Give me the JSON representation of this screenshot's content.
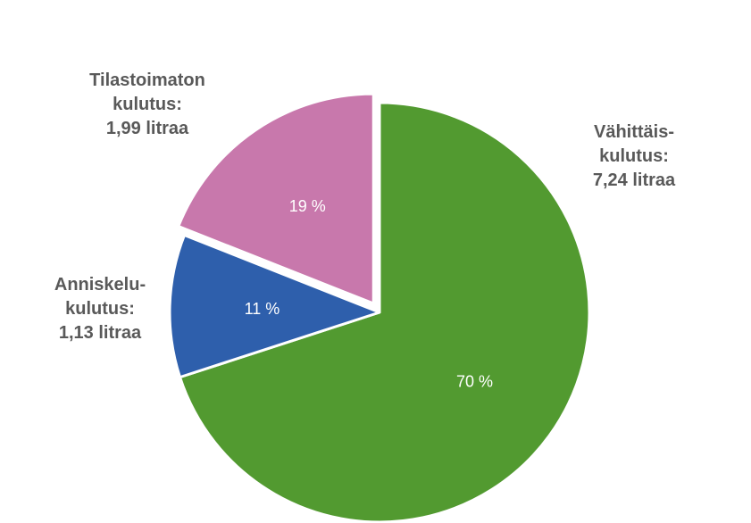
{
  "chart_data": {
    "type": "pie",
    "title": "",
    "slices": [
      {
        "value": 70,
        "percent_label": "70 %",
        "label_lines": [
          "Vähittäis-",
          "kulutus:",
          "7,24 litraa"
        ],
        "color": "#529A30"
      },
      {
        "value": 11,
        "percent_label": "11 %",
        "label_lines": [
          "Anniskelu-",
          "kulutus:",
          "1,13 litraa"
        ],
        "color": "#2E5FAC"
      },
      {
        "value": 19,
        "percent_label": "19 %",
        "label_lines": [
          "Tilastoimaton",
          "kulutus:",
          "1,99 litraa"
        ],
        "color": "#C878AC"
      }
    ],
    "start_angle_deg": 0,
    "direction": "clockwise",
    "exploded_slice": 2,
    "legend": "none"
  }
}
